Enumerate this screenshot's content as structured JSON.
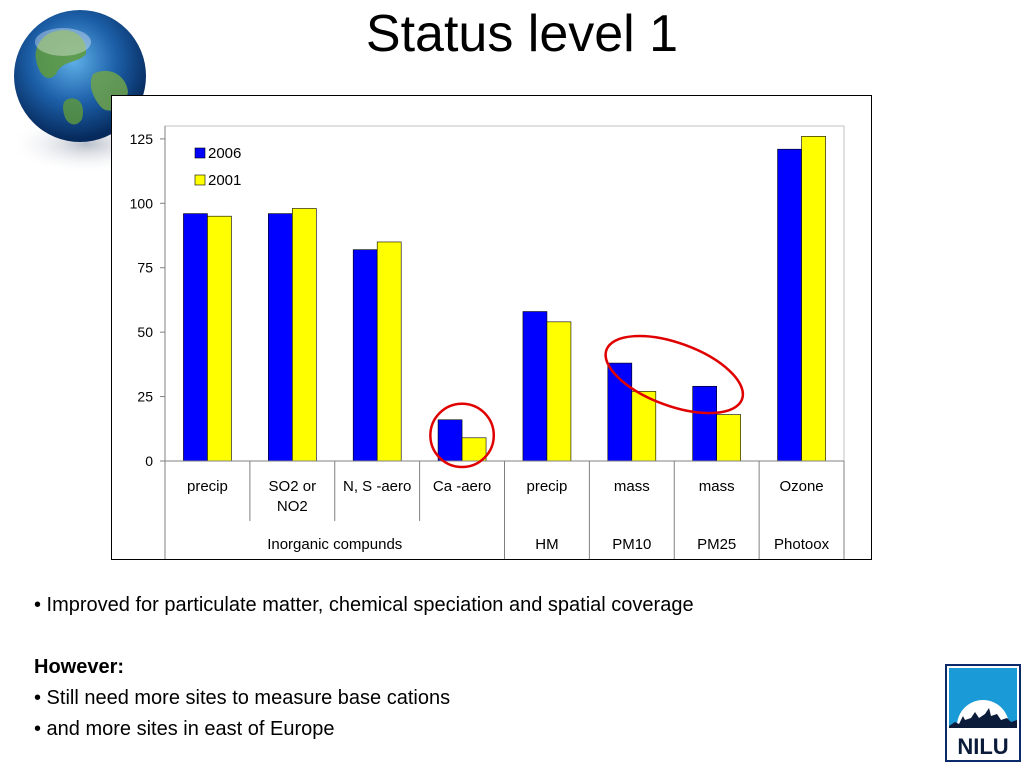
{
  "slide": {
    "title": "Status level 1",
    "bullet_1": "• Improved  for particulate matter, chemical speciation and spatial coverage",
    "heading": "However:",
    "bullet_2": "• Still need more sites to measure base cations",
    "bullet_3": "• and more sites in east of Europe",
    "logo_text": "NILU"
  },
  "chart_data": {
    "type": "bar",
    "categories": [
      {
        "label": "precip",
        "lines": [
          "precip"
        ]
      },
      {
        "label": "SO2 or NO2",
        "lines": [
          "SO2 or",
          "NO2"
        ]
      },
      {
        "label": "N, S -aero",
        "lines": [
          "N, S -aero"
        ]
      },
      {
        "label": "Ca -aero",
        "lines": [
          "Ca -aero"
        ]
      },
      {
        "label": "precip",
        "lines": [
          "precip"
        ]
      },
      {
        "label": "mass",
        "lines": [
          "mass"
        ]
      },
      {
        "label": "mass",
        "lines": [
          "mass"
        ]
      },
      {
        "label": "Ozone",
        "lines": [
          "Ozone"
        ]
      }
    ],
    "groups": [
      {
        "label": "Inorganic compunds",
        "span": 4
      },
      {
        "label": "HM",
        "span": 1
      },
      {
        "label": "PM10",
        "span": 1
      },
      {
        "label": "PM25",
        "span": 1
      },
      {
        "label": "Photoox",
        "span": 1
      }
    ],
    "series": [
      {
        "name": "2006",
        "color": "#0000ff",
        "values": [
          96,
          96,
          82,
          16,
          58,
          38,
          29,
          121
        ]
      },
      {
        "name": "2001",
        "color": "#ffff00",
        "values": [
          95,
          98,
          85,
          9,
          54,
          27,
          18,
          126
        ]
      }
    ],
    "yticks": [
      0,
      25,
      50,
      75,
      100,
      125
    ],
    "ylim": [
      0,
      130
    ],
    "grid": false,
    "legend": "top-left",
    "annotations": [
      {
        "type": "ellipse",
        "color": "#e00000",
        "around_categories": [
          3
        ]
      },
      {
        "type": "ellipse",
        "color": "#e00000",
        "around_categories": [
          5,
          6
        ]
      }
    ]
  }
}
